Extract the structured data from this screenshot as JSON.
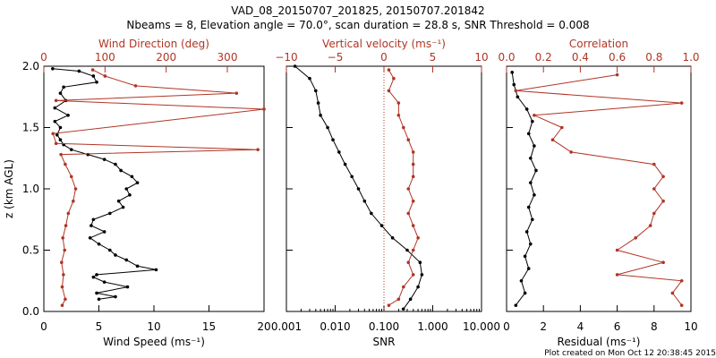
{
  "title_line1": "VAD_08_20150707_201825, 20150707.201842",
  "title_line2": "Nbeams = 8, Elevation angle = 70.0°, scan duration = 28.8 s, SNR Threshold = 0.008",
  "footer": "Plot created on Mon Oct 12 20:38:45 2015",
  "colors": {
    "primary": "#000000",
    "secondary": "#b03525"
  },
  "chart_data": [
    {
      "type": "line",
      "title": "Wind speed and direction",
      "bottom_axis": {
        "label": "Wind Speed (ms⁻¹)",
        "range": [
          0,
          20
        ],
        "ticks": [
          0,
          5,
          10,
          15,
          20
        ],
        "tick_labels": [
          "0",
          "5",
          "10",
          "15",
          "20"
        ]
      },
      "top_axis": {
        "label": "Wind Direction (deg)",
        "range": [
          0,
          360
        ],
        "ticks": [
          0,
          100,
          200,
          300
        ],
        "tick_labels": [
          "0",
          "100",
          "200",
          "300"
        ]
      },
      "left_axis": {
        "label": "z (km AGL)",
        "range": [
          0,
          2
        ],
        "ticks": [
          0,
          0.5,
          1.0,
          1.5,
          2.0
        ],
        "tick_labels": [
          "0.0",
          "0.5",
          "1.0",
          "1.5",
          "2.0"
        ]
      },
      "series": [
        {
          "name": "Wind Speed",
          "axis": "bottom",
          "color": "#000000",
          "points": [
            [
              5.0,
              0.1
            ],
            [
              6.5,
              0.12
            ],
            [
              4.8,
              0.15
            ],
            [
              7.6,
              0.2
            ],
            [
              5.5,
              0.24
            ],
            [
              4.5,
              0.28
            ],
            [
              4.8,
              0.3
            ],
            [
              10.2,
              0.34
            ],
            [
              8.5,
              0.37
            ],
            [
              7.5,
              0.42
            ],
            [
              6.5,
              0.46
            ],
            [
              6.0,
              0.5
            ],
            [
              5.0,
              0.55
            ],
            [
              4.2,
              0.6
            ],
            [
              5.5,
              0.65
            ],
            [
              4.3,
              0.7
            ],
            [
              4.5,
              0.75
            ],
            [
              6.0,
              0.8
            ],
            [
              7.2,
              0.85
            ],
            [
              6.8,
              0.9
            ],
            [
              7.8,
              0.95
            ],
            [
              7.5,
              1.0
            ],
            [
              8.5,
              1.05
            ],
            [
              8.0,
              1.1
            ],
            [
              7.0,
              1.15
            ],
            [
              6.5,
              1.2
            ],
            [
              5.5,
              1.24
            ],
            [
              4.0,
              1.28
            ],
            [
              2.5,
              1.32
            ],
            [
              1.8,
              1.36
            ],
            [
              1.5,
              1.4
            ],
            [
              1.2,
              1.44
            ],
            [
              1.5,
              1.5
            ],
            [
              1.0,
              1.55
            ],
            [
              2.2,
              1.6
            ],
            [
              1.0,
              1.66
            ],
            [
              2.0,
              1.72
            ],
            [
              1.5,
              1.78
            ],
            [
              1.8,
              1.83
            ],
            [
              4.8,
              1.87
            ],
            [
              4.5,
              1.92
            ],
            [
              3.2,
              1.96
            ],
            [
              0.8,
              1.98
            ]
          ]
        },
        {
          "name": "Wind Direction",
          "axis": "top",
          "color": "#b03525",
          "points": [
            [
              30,
              0.05
            ],
            [
              35,
              0.1
            ],
            [
              30,
              0.2
            ],
            [
              32,
              0.3
            ],
            [
              29,
              0.4
            ],
            [
              34,
              0.5
            ],
            [
              31,
              0.6
            ],
            [
              36,
              0.7
            ],
            [
              40,
              0.8
            ],
            [
              48,
              0.9
            ],
            [
              52,
              1.0
            ],
            [
              45,
              1.1
            ],
            [
              35,
              1.2
            ],
            [
              28,
              1.28
            ],
            [
              350,
              1.32
            ],
            [
              20,
              1.37
            ],
            [
              15,
              1.45
            ],
            [
              360,
              1.65
            ],
            [
              20,
              1.72
            ],
            [
              315,
              1.78
            ],
            [
              150,
              1.84
            ],
            [
              100,
              1.92
            ],
            [
              80,
              1.97
            ]
          ]
        }
      ]
    },
    {
      "type": "line",
      "title": "Vertical velocity and SNR",
      "bottom_axis": {
        "label": "SNR",
        "scale": "log",
        "range": [
          0.001,
          10
        ],
        "ticks": [
          0.001,
          0.01,
          0.1,
          1,
          10
        ],
        "tick_labels": [
          "0.001",
          "0.010",
          "0.100",
          "1.000",
          "10.000"
        ]
      },
      "top_axis": {
        "label": "Vertical velocity (ms⁻¹)",
        "range": [
          -10,
          10
        ],
        "ticks": [
          -10,
          -5,
          0,
          5,
          10
        ],
        "tick_labels": [
          "−10",
          "−5",
          "0",
          "5",
          "10"
        ]
      },
      "left_axis": {
        "range": [
          0,
          2
        ]
      },
      "reference_line": {
        "axis": "top",
        "value": 0,
        "style": "dotted"
      },
      "series": [
        {
          "name": "SNR",
          "axis": "bottom",
          "color": "#000000",
          "points": [
            [
              0.25,
              0.02
            ],
            [
              0.35,
              0.1
            ],
            [
              0.5,
              0.2
            ],
            [
              0.6,
              0.3
            ],
            [
              0.55,
              0.4
            ],
            [
              0.3,
              0.5
            ],
            [
              0.15,
              0.6
            ],
            [
              0.09,
              0.7
            ],
            [
              0.055,
              0.8
            ],
            [
              0.04,
              0.9
            ],
            [
              0.03,
              1.0
            ],
            [
              0.022,
              1.1
            ],
            [
              0.016,
              1.2
            ],
            [
              0.012,
              1.3
            ],
            [
              0.009,
              1.4
            ],
            [
              0.007,
              1.5
            ],
            [
              0.005,
              1.6
            ],
            [
              0.0045,
              1.7
            ],
            [
              0.004,
              1.8
            ],
            [
              0.003,
              1.9
            ],
            [
              0.0015,
              2.0
            ]
          ]
        },
        {
          "name": "Vertical velocity",
          "axis": "top",
          "color": "#b03525",
          "points": [
            [
              0.5,
              0.05
            ],
            [
              1.5,
              0.1
            ],
            [
              2.0,
              0.2
            ],
            [
              3.0,
              0.3
            ],
            [
              2.5,
              0.4
            ],
            [
              3.0,
              0.5
            ],
            [
              3.5,
              0.6
            ],
            [
              3.0,
              0.7
            ],
            [
              2.5,
              0.8
            ],
            [
              3.0,
              0.9
            ],
            [
              2.5,
              1.0
            ],
            [
              3.0,
              1.1
            ],
            [
              3.0,
              1.2
            ],
            [
              3.0,
              1.3
            ],
            [
              2.5,
              1.4
            ],
            [
              2.0,
              1.5
            ],
            [
              1.5,
              1.6
            ],
            [
              1.5,
              1.7
            ],
            [
              0.5,
              1.8
            ],
            [
              1.0,
              1.9
            ],
            [
              0.5,
              1.97
            ]
          ]
        }
      ]
    },
    {
      "type": "line",
      "title": "Residual and correlation",
      "bottom_axis": {
        "label": "Residual (ms⁻¹)",
        "range": [
          0,
          10
        ],
        "ticks": [
          0,
          2,
          4,
          6,
          8,
          10
        ],
        "tick_labels": [
          "0",
          "2",
          "4",
          "6",
          "8",
          "10"
        ]
      },
      "top_axis": {
        "label": "Correlation",
        "range": [
          0,
          1.0
        ],
        "ticks": [
          0,
          0.2,
          0.4,
          0.6,
          0.8,
          1.0
        ],
        "tick_labels": [
          "0.0",
          "0.2",
          "0.4",
          "0.6",
          "0.8",
          "1.0"
        ]
      },
      "left_axis": {
        "range": [
          0,
          2
        ]
      },
      "series": [
        {
          "name": "Residual",
          "axis": "bottom",
          "color": "#000000",
          "points": [
            [
              0.5,
              0.05
            ],
            [
              1.0,
              0.15
            ],
            [
              0.8,
              0.25
            ],
            [
              1.2,
              0.35
            ],
            [
              1.0,
              0.45
            ],
            [
              1.3,
              0.55
            ],
            [
              1.1,
              0.65
            ],
            [
              1.4,
              0.75
            ],
            [
              1.2,
              0.85
            ],
            [
              1.5,
              0.95
            ],
            [
              1.3,
              1.05
            ],
            [
              1.6,
              1.15
            ],
            [
              1.3,
              1.25
            ],
            [
              1.5,
              1.35
            ],
            [
              1.2,
              1.45
            ],
            [
              1.4,
              1.55
            ],
            [
              1.1,
              1.65
            ],
            [
              0.6,
              1.75
            ],
            [
              0.4,
              1.85
            ],
            [
              0.3,
              1.95
            ]
          ]
        },
        {
          "name": "Correlation",
          "axis": "top",
          "color": "#b03525",
          "points": [
            [
              0.95,
              0.05
            ],
            [
              0.9,
              0.15
            ],
            [
              0.95,
              0.25
            ],
            [
              0.6,
              0.3
            ],
            [
              0.85,
              0.4
            ],
            [
              0.6,
              0.5
            ],
            [
              0.7,
              0.6
            ],
            [
              0.78,
              0.7
            ],
            [
              0.8,
              0.8
            ],
            [
              0.85,
              0.9
            ],
            [
              0.8,
              1.0
            ],
            [
              0.85,
              1.1
            ],
            [
              0.8,
              1.2
            ],
            [
              0.35,
              1.3
            ],
            [
              0.25,
              1.4
            ],
            [
              0.3,
              1.5
            ],
            [
              0.15,
              1.6
            ],
            [
              0.95,
              1.7
            ],
            [
              0.05,
              1.8
            ],
            [
              0.6,
              1.93
            ]
          ]
        }
      ]
    }
  ]
}
